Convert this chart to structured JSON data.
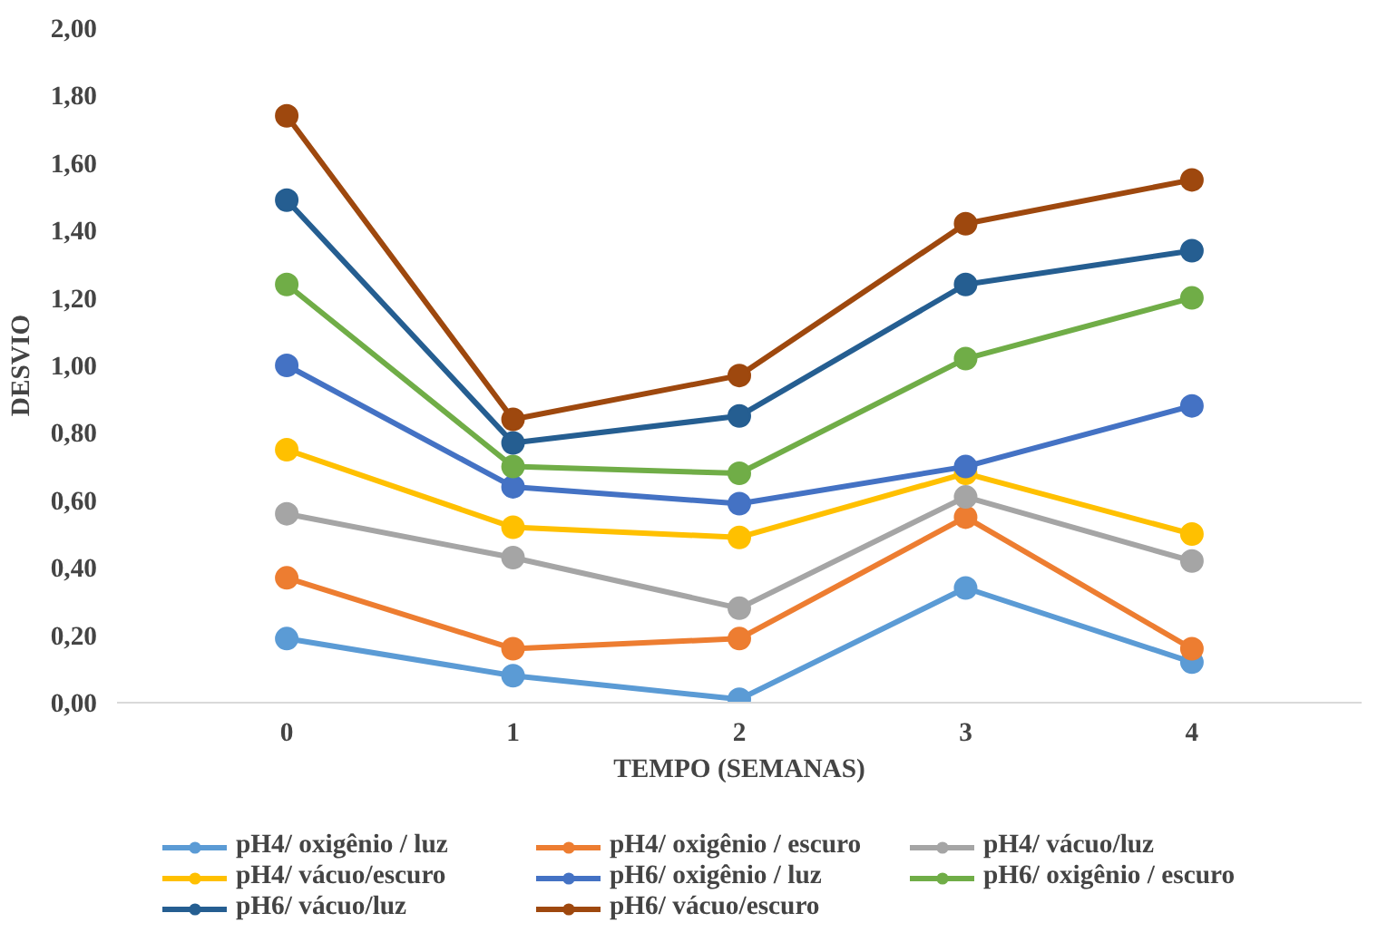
{
  "chart_data": {
    "type": "line",
    "xlabel": "TEMPO (SEMANAS)",
    "ylabel": "DESVIO",
    "categories": [
      "0",
      "1",
      "2",
      "3",
      "4"
    ],
    "ylim": [
      0,
      2
    ],
    "yticks": [
      {
        "value": 0,
        "label": "0,00"
      },
      {
        "value": 0.2,
        "label": "0,20"
      },
      {
        "value": 0.4,
        "label": "0,40"
      },
      {
        "value": 0.6,
        "label": "0,60"
      },
      {
        "value": 0.8,
        "label": "0,80"
      },
      {
        "value": 1.0,
        "label": "1,00"
      },
      {
        "value": 1.2,
        "label": "1,20"
      },
      {
        "value": 1.4,
        "label": "1,40"
      },
      {
        "value": 1.6,
        "label": "1,60"
      },
      {
        "value": 1.8,
        "label": "1,80"
      },
      {
        "value": 2.0,
        "label": "2,00"
      }
    ],
    "grid": false,
    "legend": "bottom",
    "marker": "circle",
    "line_style": "solid",
    "series": [
      {
        "name": "pH4/ oxigênio / luz",
        "color": "#5b9bd5",
        "values": [
          0.19,
          0.08,
          0.01,
          0.34,
          0.12
        ]
      },
      {
        "name": "pH4/ oxigênio / escuro",
        "color": "#ed7d31",
        "values": [
          0.37,
          0.16,
          0.19,
          0.55,
          0.16
        ]
      },
      {
        "name": "pH4/ vácuo/luz",
        "color": "#a5a5a5",
        "values": [
          0.56,
          0.43,
          0.28,
          0.61,
          0.42
        ]
      },
      {
        "name": "pH4/ vácuo/escuro",
        "color": "#ffc000",
        "values": [
          0.75,
          0.52,
          0.49,
          0.68,
          0.5
        ]
      },
      {
        "name": "pH6/ oxigênio / luz",
        "color": "#4472c4",
        "values": [
          1.0,
          0.64,
          0.59,
          0.7,
          0.88
        ]
      },
      {
        "name": "pH6/ oxigênio / escuro",
        "color": "#70ad47",
        "values": [
          1.24,
          0.7,
          0.68,
          1.02,
          1.2
        ]
      },
      {
        "name": "pH6/ vácuo/luz",
        "color": "#255e91",
        "values": [
          1.49,
          0.77,
          0.85,
          1.24,
          1.34
        ]
      },
      {
        "name": "pH6/ vácuo/escuro",
        "color": "#9e480e",
        "values": [
          1.74,
          0.84,
          0.97,
          1.42,
          1.55
        ]
      }
    ]
  }
}
